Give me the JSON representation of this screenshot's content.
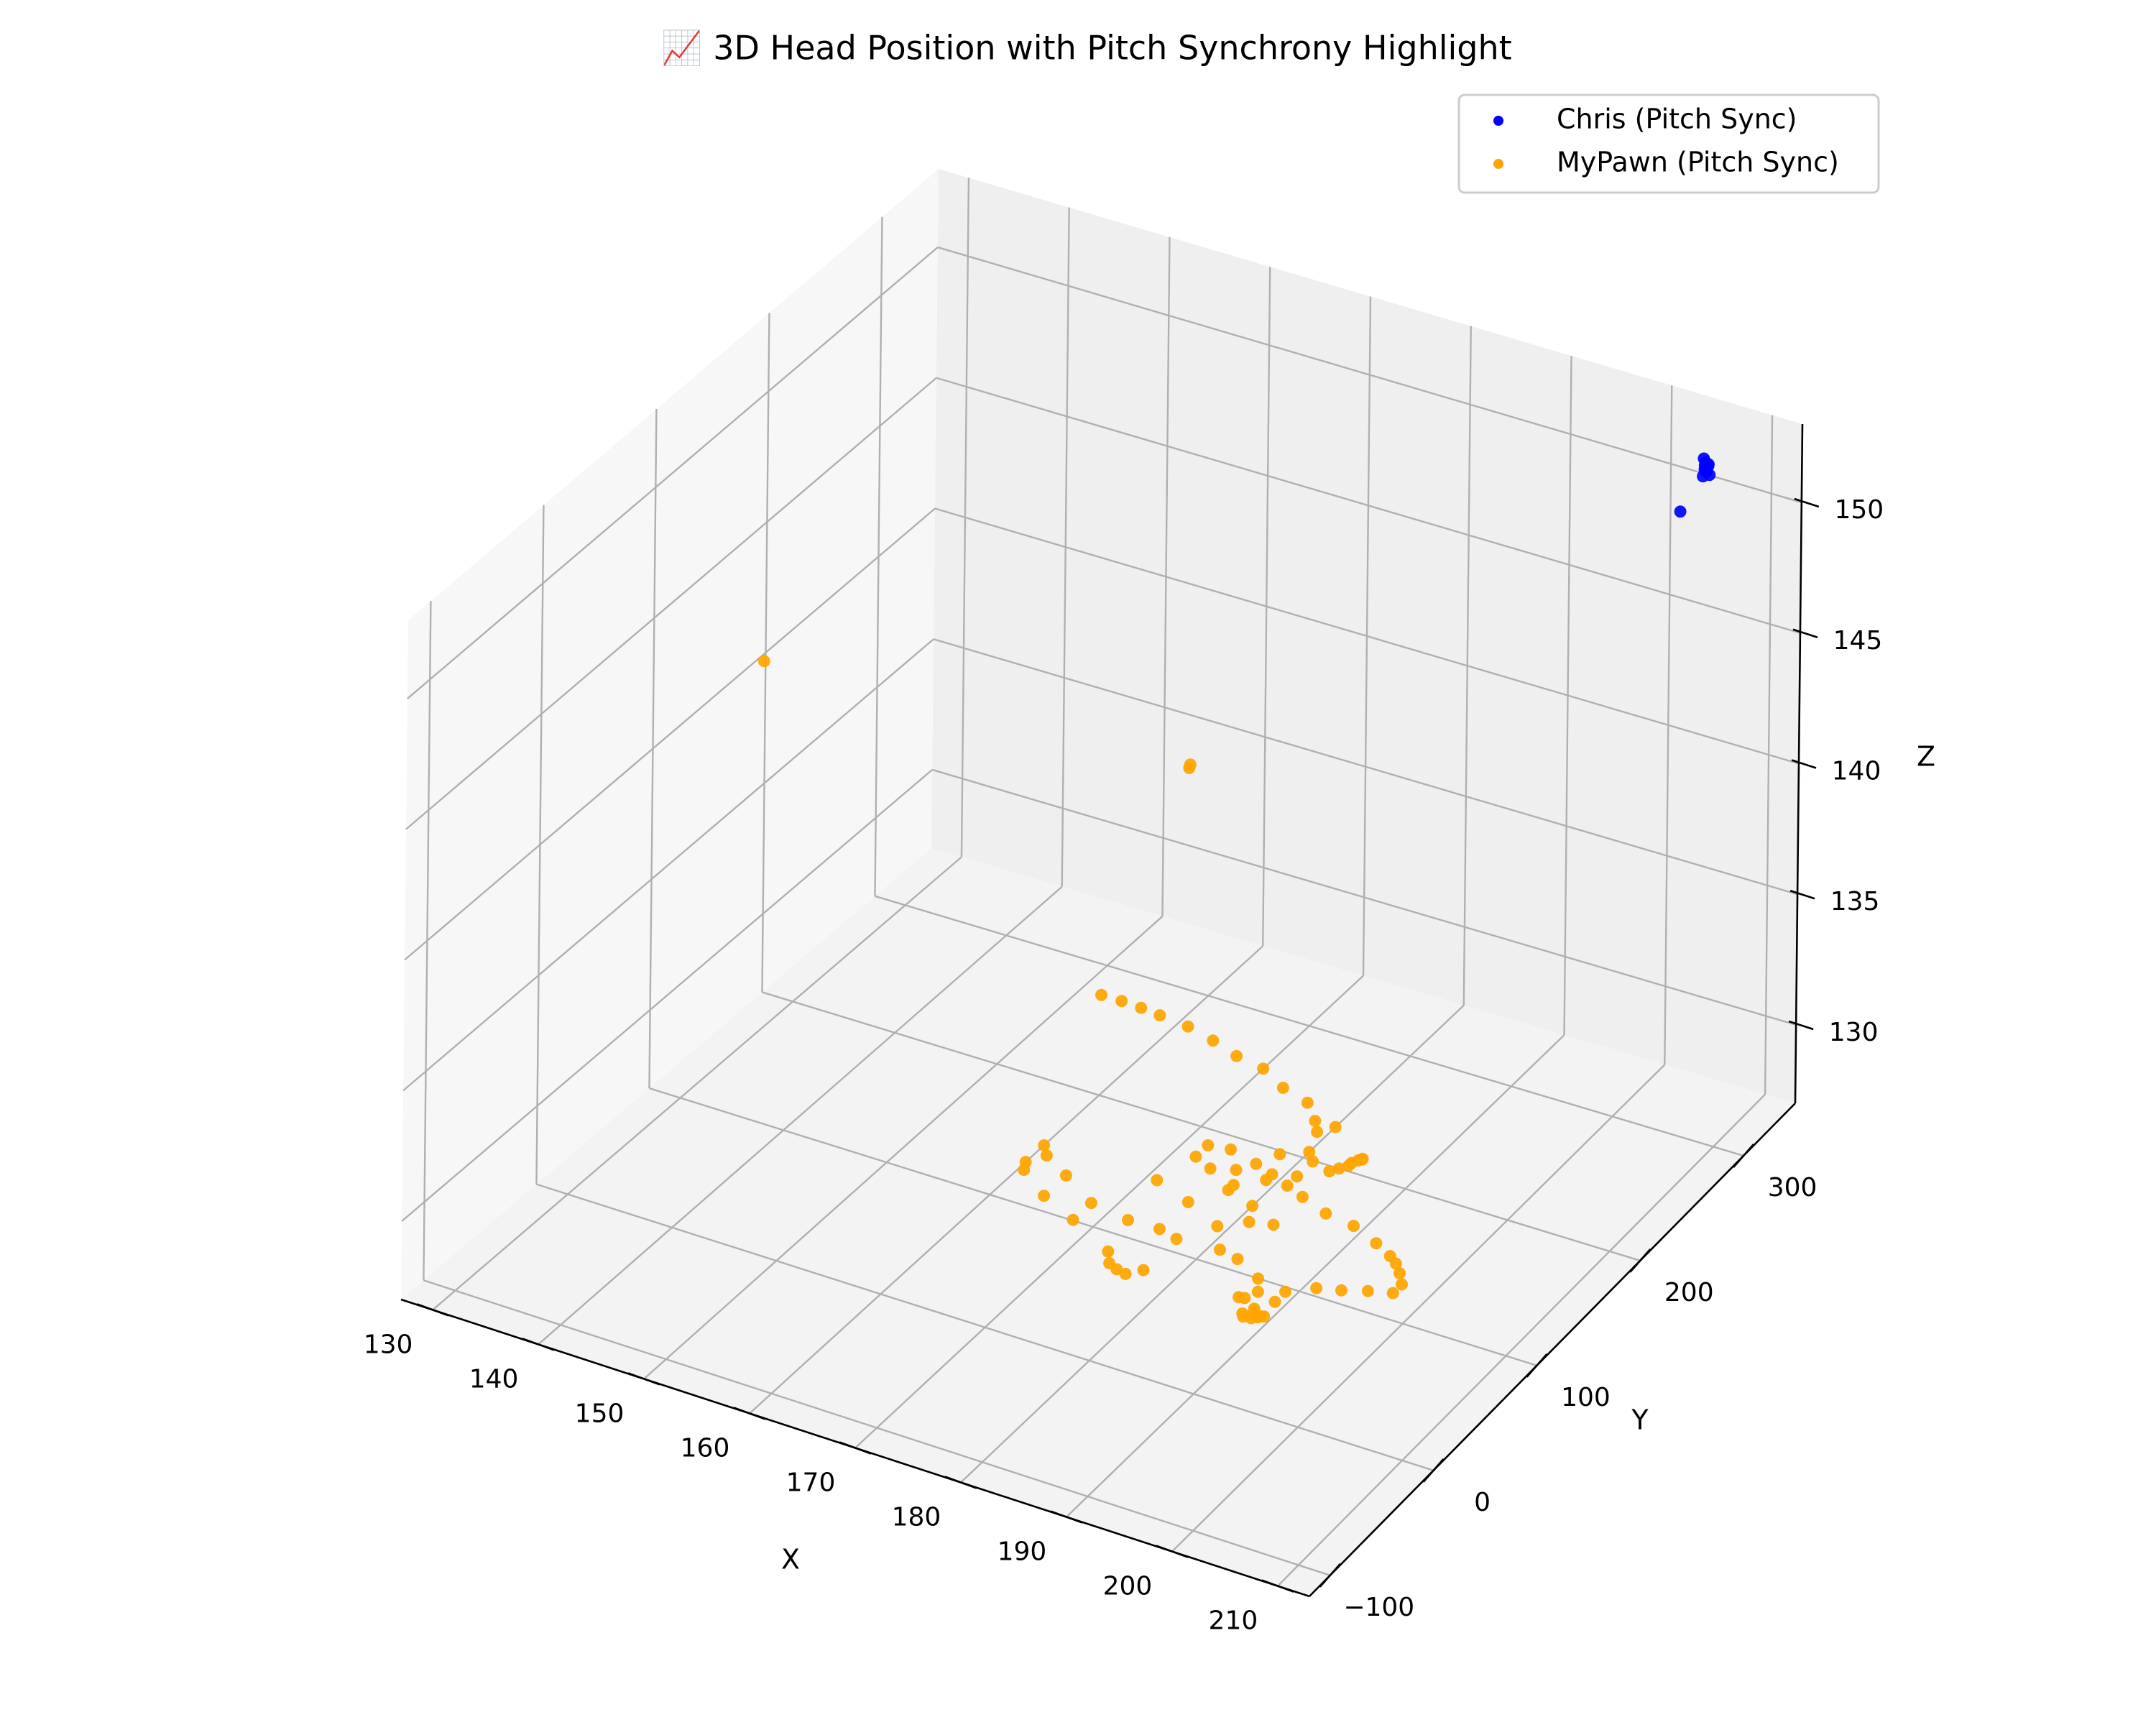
{
  "chart_data": {
    "type": "scatter",
    "projection": "3d",
    "title": "📈 3D Head Position with Pitch Synchrony Highlight",
    "xlabel": "X",
    "ylabel": "Y",
    "zlabel": "Z",
    "xlim": [
      127,
      213
    ],
    "ylim": [
      -120,
      350
    ],
    "zlim": [
      127,
      153
    ],
    "xticks": [
      130,
      140,
      150,
      160,
      170,
      180,
      190,
      200,
      210
    ],
    "yticks": [
      -100,
      0,
      100,
      200,
      300
    ],
    "zticks": [
      130,
      135,
      140,
      145,
      150
    ],
    "ytick_labels": [
      "−100",
      "0",
      "100",
      "200",
      "300"
    ],
    "grid": true,
    "legend_position": "top-right",
    "series": [
      {
        "name": "Chris (Pitch Sync)",
        "color": "#0000ff",
        "points": [
          [
            205.7,
            327.2,
            151.5
          ],
          [
            205.7,
            327.8,
            151.6
          ],
          [
            205.9,
            326.6,
            151.3
          ],
          [
            206.2,
            326.9,
            151.2
          ],
          [
            205.5,
            328.1,
            151.7
          ],
          [
            205.8,
            326.0,
            151.4
          ],
          [
            206.0,
            327.5,
            151.5
          ],
          [
            205.6,
            326.4,
            151.1
          ],
          [
            205.8,
            327.1,
            151.3
          ],
          [
            206.1,
            326.8,
            151.6
          ],
          [
            204.0,
            320.5,
            149.8
          ]
        ]
      },
      {
        "name": "MyPawn (Pitch Sync)",
        "color": "#ffa500",
        "points": [
          [
            128.7,
            183.1,
            140.5
          ],
          [
            158.8,
            292.4,
            136.0
          ],
          [
            159.0,
            289.6,
            136.0
          ],
          [
            152.0,
            276.3,
            127.0
          ],
          [
            154.0,
            276.3,
            127.0
          ],
          [
            156.0,
            275.6,
            127.0
          ],
          [
            158.0,
            274.2,
            127.0
          ],
          [
            161.0,
            272.1,
            127.0
          ],
          [
            164.0,
            267.2,
            127.0
          ],
          [
            167.0,
            260.9,
            127.0
          ],
          [
            170.0,
            257.4,
            127.0
          ],
          [
            173.0,
            247.6,
            127.0
          ],
          [
            176.0,
            242.0,
            127.0
          ],
          [
            178.0,
            230.1,
            127.0
          ],
          [
            180.0,
            230.1,
            127.0
          ],
          [
            179.0,
            222.4,
            127.0
          ],
          [
            180.0,
            205.6,
            127.0
          ],
          [
            181.0,
            199.3,
            127.0
          ],
          [
            184.5,
            212.6,
            127.0
          ],
          [
            184.5,
            211.9,
            127.0
          ],
          [
            184.3,
            210.5,
            127.0
          ],
          [
            184.0,
            207.0,
            127.0
          ],
          [
            184.0,
            204.2,
            127.0
          ],
          [
            183.5,
            200.0,
            127.0
          ],
          [
            183.0,
            195.8,
            127.0
          ],
          [
            181.0,
            184.6,
            127.0
          ],
          [
            179.0,
            180.4,
            127.0
          ],
          [
            181.0,
            175.5,
            127.0
          ],
          [
            183.0,
            170.6,
            127.0
          ],
          [
            186.0,
            163.6,
            127.0
          ],
          [
            189.0,
            160.8,
            127.0
          ],
          [
            192.0,
            153.1,
            127.0
          ],
          [
            194.0,
            146.8,
            127.0
          ],
          [
            195.0,
            142.6,
            127.0
          ],
          [
            196.0,
            136.3,
            127.0
          ],
          [
            197.0,
            128.6,
            127.0
          ],
          [
            197.0,
            120.2,
            127.0
          ],
          [
            195.0,
            116.0,
            127.0
          ],
          [
            193.0,
            110.4,
            127.0
          ],
          [
            191.0,
            106.2,
            127.0
          ],
          [
            189.0,
            96.4,
            127.0
          ],
          [
            189.0,
            86.6,
            127.0
          ],
          [
            188.0,
            76.8,
            127.0
          ],
          [
            188.3,
            72.6,
            127.0
          ],
          [
            189.0,
            72.6,
            127.0
          ],
          [
            187.5,
            70.5,
            127.0
          ],
          [
            188.5,
            69.1,
            127.0
          ],
          [
            189.3,
            73.3,
            127.0
          ],
          [
            187.8,
            68.4,
            127.0
          ],
          [
            188.9,
            71.2,
            127.0
          ],
          [
            186.0,
            81.7,
            127.0
          ],
          [
            186.5,
            82.4,
            127.0
          ],
          [
            187.0,
            90.1,
            127.0
          ],
          [
            186.0,
            99.9,
            127.0
          ],
          [
            183.0,
            109.7,
            127.0
          ],
          [
            181.0,
            112.5,
            127.0
          ],
          [
            177.0,
            110.4,
            127.0
          ],
          [
            175.0,
            113.9,
            127.0
          ],
          [
            172.0,
            113.2,
            127.0
          ],
          [
            168.0,
            117.4,
            127.0
          ],
          [
            164.0,
            132.1,
            127.0
          ],
          [
            161.0,
            142.6,
            127.0
          ],
          [
            160.0,
            149.6,
            127.0
          ],
          [
            160.0,
            132.8,
            127.0
          ],
          [
            160.5,
            126.5,
            127.0
          ],
          [
            164.0,
            111.8,
            127.0
          ],
          [
            168.0,
            100.6,
            127.0
          ],
          [
            173.0,
            85.2,
            127.0
          ],
          [
            174.0,
            76.8,
            127.0
          ],
          [
            175.0,
            74.0,
            127.0
          ],
          [
            176.0,
            72.6,
            127.0
          ],
          [
            177.0,
            79.6,
            127.0
          ],
          [
            171.0,
            149.6,
            127.0
          ],
          [
            175.0,
            140.5,
            127.0
          ],
          [
            179.0,
            129.3,
            127.0
          ],
          [
            181.0,
            139.8,
            127.0
          ],
          [
            183.0,
            143.3,
            127.0
          ],
          [
            180.0,
            152.4,
            127.0
          ],
          [
            177.0,
            158.7,
            127.0
          ],
          [
            174.0,
            170.6,
            127.0
          ],
          [
            172.0,
            176.2,
            127.0
          ],
          [
            172.0,
            187.4,
            127.0
          ],
          [
            174.0,
            189.5,
            127.0
          ],
          [
            177.0,
            184.6,
            127.0
          ],
          [
            179.0,
            174.8,
            127.0
          ],
          [
            177.0,
            163.6,
            127.0
          ],
          [
            176.0,
            175.5,
            127.0
          ],
          [
            178.0,
            197.2,
            127.0
          ]
        ]
      }
    ]
  }
}
